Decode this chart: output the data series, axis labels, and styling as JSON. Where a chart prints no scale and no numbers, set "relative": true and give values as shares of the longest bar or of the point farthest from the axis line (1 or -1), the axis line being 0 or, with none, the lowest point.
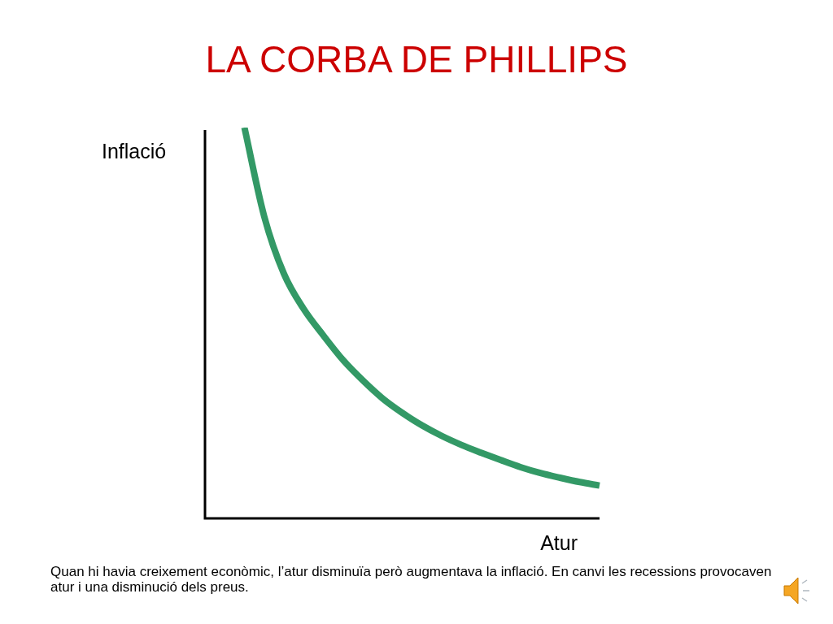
{
  "chart_data": {
    "type": "line",
    "title": "LA CORBA DE PHILLIPS",
    "xlabel": "Atur",
    "ylabel": "Inflació",
    "annotations": [
      "Quan hi havia creixement econòmic, l’atur disminuïa però augmentava la inflació. En canvi les recessions provocaven atur i una disminució dels preus."
    ],
    "relative": true,
    "categories": [
      null,
      null,
      null,
      null,
      null,
      null,
      null,
      null,
      null,
      null,
      null,
      null,
      null,
      null,
      null,
      null,
      null,
      null,
      null,
      null,
      null
    ],
    "values": [
      null,
      null,
      1,
      0.773,
      0.626,
      0.536,
      0.468,
      0.405,
      0.353,
      0.307,
      0.27,
      0.238,
      0.211,
      0.188,
      0.168,
      0.149,
      0.131,
      0.116,
      0.104,
      0.093,
      0.084
    ],
    "color": "#339966"
  }
}
